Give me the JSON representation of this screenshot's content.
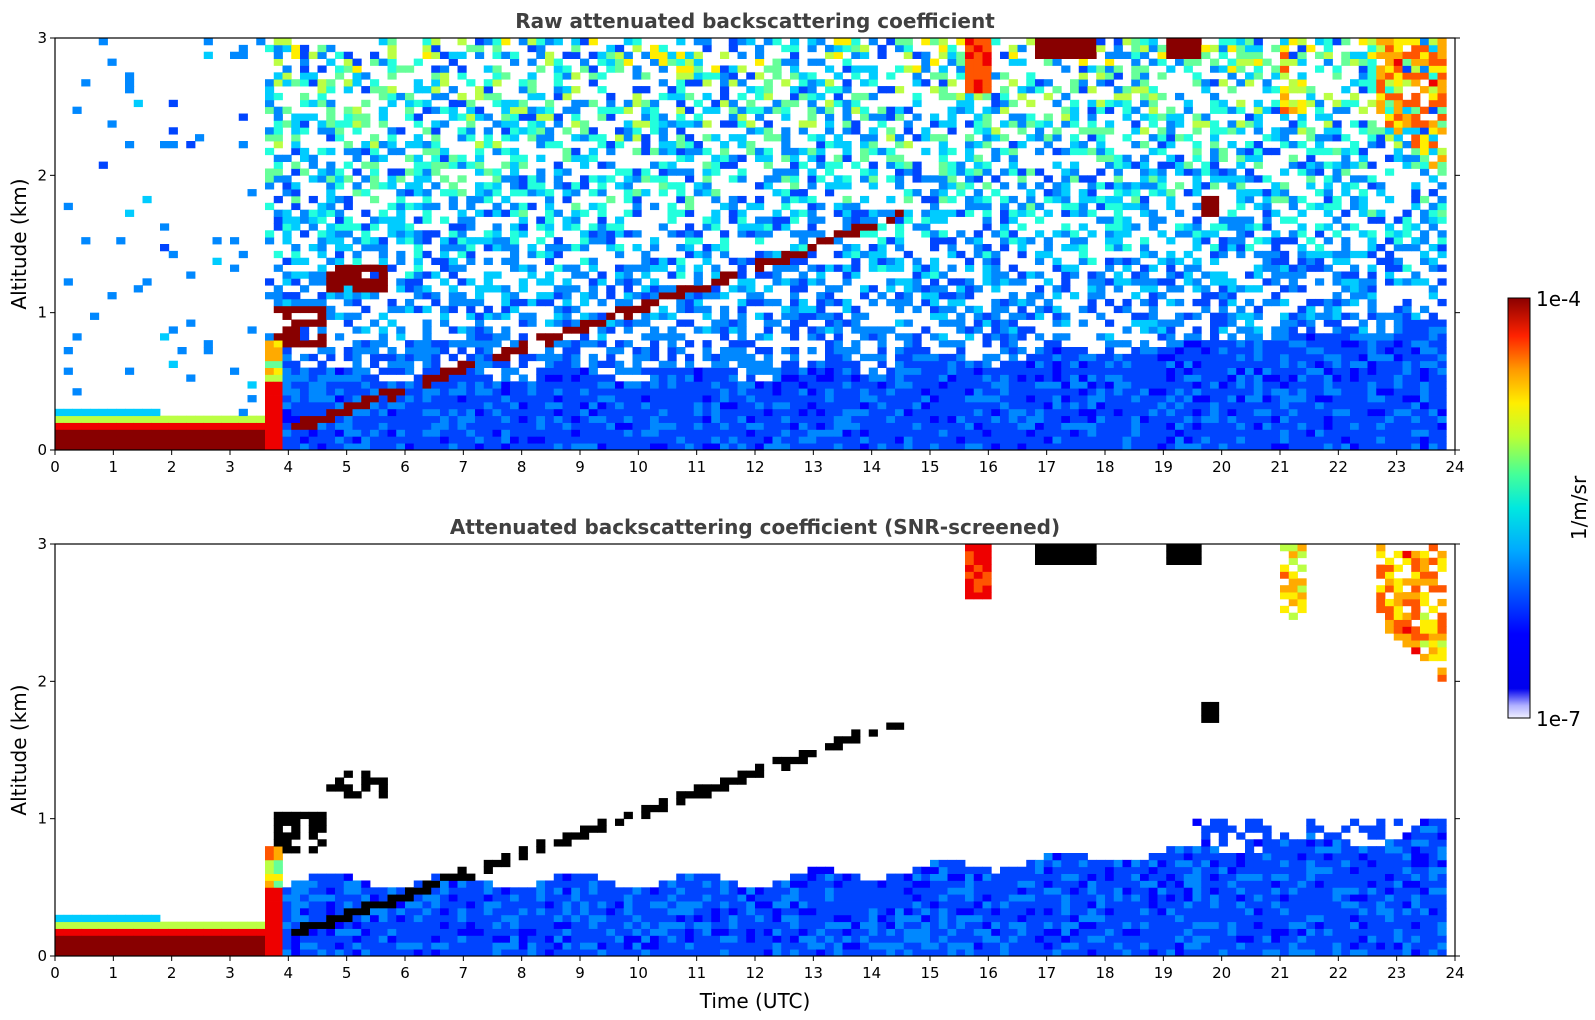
{
  "chart_data": [
    {
      "type": "heatmap",
      "title": "Raw attenuated backscattering coefficient",
      "xlabel": "",
      "ylabel": "Altitude (km)",
      "xlim": [
        0,
        24
      ],
      "ylim": [
        0,
        3
      ],
      "x_ticks": [
        "0",
        "1",
        "2",
        "3",
        "4",
        "5",
        "6",
        "7",
        "8",
        "9",
        "10",
        "11",
        "12",
        "13",
        "14",
        "15",
        "16",
        "17",
        "18",
        "19",
        "20",
        "21",
        "22",
        "23",
        "24"
      ],
      "y_ticks": [
        "0",
        "1",
        "2",
        "3"
      ],
      "screened": false,
      "features": [
        {
          "kind": "boundary_layer",
          "t_start": 0.0,
          "t_end": 3.6,
          "alt_km": 0.2
        },
        {
          "kind": "aerosol_layer",
          "t_start": 3.6,
          "t_end": 23.8,
          "alt_top_km": 0.6
        },
        {
          "kind": "cloud_band",
          "t": [
            3.7,
            4.5
          ],
          "alt_km": [
            0.6,
            1.0
          ]
        },
        {
          "kind": "cloud_patch",
          "t": [
            4.7,
            5.7
          ],
          "alt_km": [
            1.15,
            1.35
          ]
        },
        {
          "kind": "rising_layer",
          "t": [
            4.0,
            13.8
          ],
          "alt_km": [
            0.15,
            1.6
          ]
        },
        {
          "kind": "high_cloud",
          "t": [
            15.6,
            16.1
          ],
          "alt_km": [
            2.6,
            3.0
          ]
        },
        {
          "kind": "high_cloud",
          "t": [
            16.8,
            17.8
          ],
          "alt_km": [
            2.85,
            3.0
          ]
        },
        {
          "kind": "high_cloud",
          "t": [
            19.0,
            19.7
          ],
          "alt_km": [
            2.85,
            3.0
          ]
        },
        {
          "kind": "cirrus_streaks",
          "t": [
            20.5,
            21.8
          ],
          "alt_km": [
            2.4,
            3.0
          ]
        },
        {
          "kind": "cirrus_streaks",
          "t": [
            22.6,
            23.8
          ],
          "alt_km": [
            2.0,
            3.0
          ]
        }
      ]
    },
    {
      "type": "heatmap",
      "title": "Attenuated backscattering coefficient (SNR-screened)",
      "xlabel": "Time (UTC)",
      "ylabel": "Altitude (km)",
      "xlim": [
        0,
        24
      ],
      "ylim": [
        0,
        3
      ],
      "x_ticks": [
        "0",
        "1",
        "2",
        "3",
        "4",
        "5",
        "6",
        "7",
        "8",
        "9",
        "10",
        "11",
        "12",
        "13",
        "14",
        "15",
        "16",
        "17",
        "18",
        "19",
        "20",
        "21",
        "22",
        "23",
        "24"
      ],
      "y_ticks": [
        "0",
        "1",
        "2",
        "3"
      ],
      "screened": true
    }
  ],
  "colorbar": {
    "label": "1/m/sr",
    "max_label": "1e-4",
    "min_label": "1e-7",
    "scale": "log",
    "range": [
      1e-07,
      0.0001
    ],
    "colormap": [
      "#0000aa",
      "#0000ff",
      "#0044ff",
      "#0088ff",
      "#00ccff",
      "#22ffdd",
      "#66ff99",
      "#bbff44",
      "#ffee00",
      "#ffaa00",
      "#ff5500",
      "#ee0000",
      "#880000"
    ]
  }
}
